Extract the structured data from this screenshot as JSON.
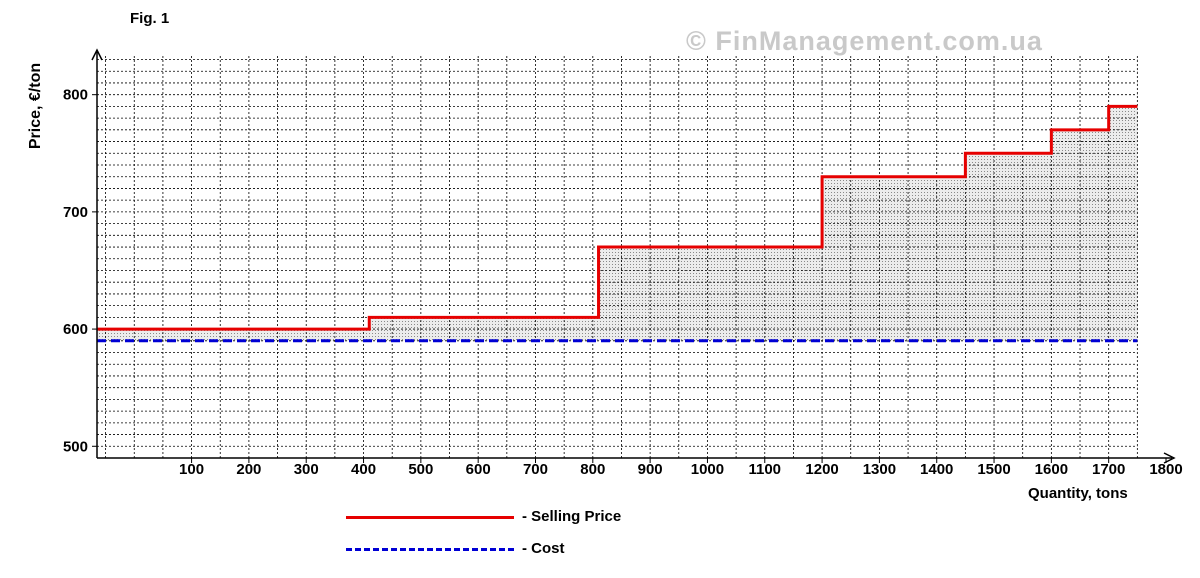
{
  "figure_label": "Fig. 1",
  "watermark": "© FinManagement.com.ua",
  "colors": {
    "selling_price": "#e60000",
    "cost": "#0000d4",
    "grid": "#000000",
    "fill": "#d9d9d9"
  },
  "chart_data": {
    "type": "line",
    "ylabel": "Price, €/ton",
    "xlabel": "Quantity, tons",
    "xlim": [
      -65,
      1800
    ],
    "ylim": [
      490,
      833
    ],
    "x_ticks": [
      100,
      200,
      300,
      400,
      500,
      600,
      700,
      800,
      900,
      1000,
      1100,
      1200,
      1300,
      1400,
      1500,
      1600,
      1700,
      1800
    ],
    "y_ticks": [
      500,
      600,
      700,
      800
    ],
    "grid": "dashed, on",
    "area_between_series_shaded": true,
    "series": [
      {
        "name": "Selling Price",
        "style": "solid step",
        "x": [
          -65,
          410,
          410,
          810,
          810,
          1200,
          1200,
          1450,
          1450,
          1600,
          1600,
          1700,
          1700,
          1750
        ],
        "y": [
          600,
          600,
          610,
          610,
          670,
          670,
          730,
          730,
          750,
          750,
          770,
          770,
          790,
          790
        ]
      },
      {
        "name": "Cost",
        "style": "dashed",
        "x": [
          -65,
          1750
        ],
        "y": [
          590,
          590
        ]
      }
    ]
  },
  "legend": [
    {
      "style": "solid",
      "text": "-  Selling Price"
    },
    {
      "style": "dashed",
      "text": "- Cost"
    }
  ]
}
